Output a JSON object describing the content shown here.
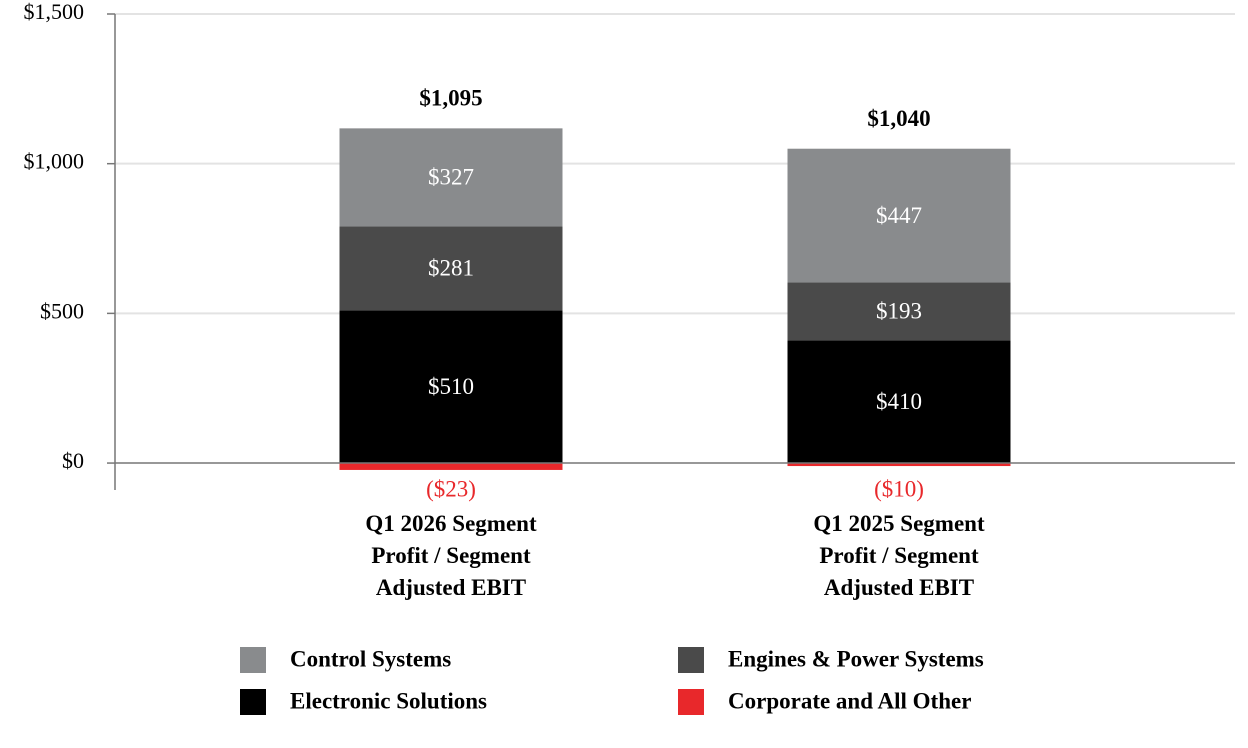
{
  "chart_data": {
    "type": "stacked_bar",
    "categories": [
      "Q1 2026 Segment Profit / Segment Adjusted EBIT",
      "Q1 2025 Segment Profit / Segment Adjusted EBIT"
    ],
    "series": [
      {
        "name": "Electronic Solutions",
        "color": "#000000",
        "values": [
          510,
          410
        ],
        "value_labels": [
          "$510",
          "$410"
        ]
      },
      {
        "name": "Engines & Power Systems",
        "color": "#4a4a4a",
        "values": [
          281,
          193
        ],
        "value_labels": [
          "$281",
          "$193"
        ]
      },
      {
        "name": "Control Systems",
        "color": "#898b8d",
        "values": [
          327,
          447
        ],
        "value_labels": [
          "$327",
          "$447"
        ]
      },
      {
        "name": "Corporate and All Other",
        "color": "#e8282b",
        "values": [
          -23,
          -10
        ],
        "value_labels": [
          "($23)",
          "($10)"
        ]
      }
    ],
    "totals": [
      1095,
      1040
    ],
    "total_labels": [
      "$1,095",
      "$1,040"
    ],
    "ylim": [
      -90,
      1500
    ],
    "yticks": [
      {
        "value": 0,
        "label": "$0"
      },
      {
        "value": 500,
        "label": "$500"
      },
      {
        "value": 1000,
        "label": "$1,000"
      },
      {
        "value": 1500,
        "label": "$1,500"
      }
    ],
    "grid": true
  }
}
